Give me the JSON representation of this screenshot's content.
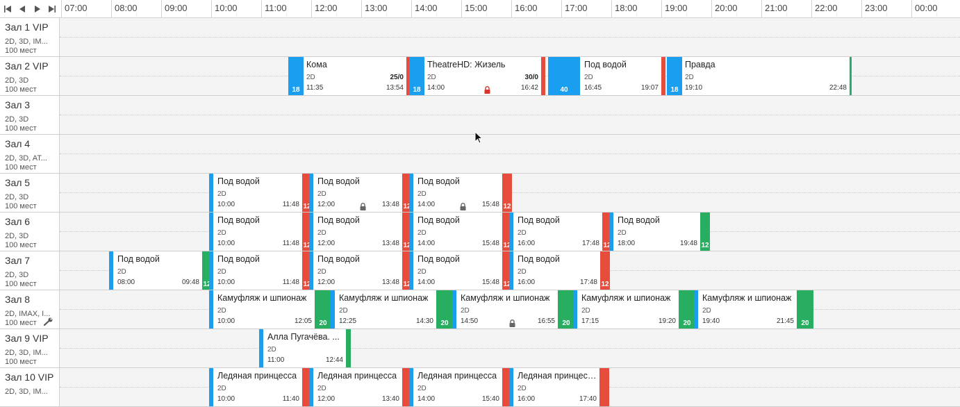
{
  "colors": {
    "blue": "#1a9ff0",
    "red": "#e84c3d",
    "green": "#27ae60",
    "lock_red": "#d9362b",
    "lock_gray": "#666666"
  },
  "nav": {
    "first": "first-page-icon",
    "prev": "prev-icon",
    "next": "next-icon",
    "last": "last-page-icon"
  },
  "timeline": {
    "hours": [
      "07:00",
      "08:00",
      "09:00",
      "10:00",
      "11:00",
      "12:00",
      "13:00",
      "14:00",
      "15:00",
      "16:00",
      "17:00",
      "18:00",
      "19:00",
      "20:00",
      "21:00",
      "22:00",
      "23:00",
      "00:00"
    ]
  },
  "halls": [
    {
      "name": "Зал 1 VIP",
      "formats": "2D, 3D, IM...",
      "seats": "100 мест",
      "sessions": []
    },
    {
      "name": "Зал 2 VIP",
      "formats": "2D, 3D",
      "seats": "100 мест",
      "sessions": [
        {
          "title": "Кома",
          "format": "2D",
          "start": "11:35",
          "end": "13:54",
          "occupancy": "25/0",
          "age": "18",
          "lead": "blue",
          "trail": "red"
        },
        {
          "title": "TheatreHD: Жизель",
          "format": "2D",
          "start": "14:00",
          "end": "16:42",
          "occupancy": "30/0",
          "age": "18",
          "lead": "blue",
          "trail": "red",
          "lock": "red"
        },
        {
          "title": "",
          "format": "",
          "start": "",
          "end": "",
          "age": "40",
          "lead": "blue",
          "trail": "",
          "block": true
        },
        {
          "title": "Под водой",
          "format": "2D",
          "start": "16:45",
          "end": "19:07",
          "age": "",
          "lead": "",
          "trail": "red"
        },
        {
          "title": "Правда",
          "format": "2D",
          "start": "19:10",
          "end": "22:48",
          "age": "18",
          "lead": "blue",
          "trail": "green"
        }
      ]
    },
    {
      "name": "Зал 3",
      "formats": "2D, 3D",
      "seats": "100 мест",
      "sessions": []
    },
    {
      "name": "Зал 4",
      "formats": "2D, 3D, AT...",
      "seats": "100 мест",
      "sessions": []
    },
    {
      "name": "Зал 5",
      "formats": "2D, 3D",
      "seats": "100 мест",
      "sessions": [
        {
          "title": "Под водой",
          "format": "2D",
          "start": "10:00",
          "end": "11:48",
          "age": "12",
          "lead": "blue",
          "trail": "red"
        },
        {
          "title": "Под водой",
          "format": "2D",
          "start": "12:00",
          "end": "13:48",
          "age": "12",
          "lead": "blue",
          "trail": "red",
          "lock": "gray"
        },
        {
          "title": "Под водой",
          "format": "2D",
          "start": "14:00",
          "end": "15:48",
          "age": "12",
          "lead": "blue",
          "trail": "red",
          "lock": "gray"
        }
      ]
    },
    {
      "name": "Зал 6",
      "formats": "2D, 3D",
      "seats": "100 мест",
      "sessions": [
        {
          "title": "Под водой",
          "format": "2D",
          "start": "10:00",
          "end": "11:48",
          "age": "12",
          "lead": "blue",
          "trail": "red"
        },
        {
          "title": "Под водой",
          "format": "2D",
          "start": "12:00",
          "end": "13:48",
          "age": "12",
          "lead": "blue",
          "trail": "red"
        },
        {
          "title": "Под водой",
          "format": "2D",
          "start": "14:00",
          "end": "15:48",
          "age": "12",
          "lead": "blue",
          "trail": "red"
        },
        {
          "title": "Под водой",
          "format": "2D",
          "start": "16:00",
          "end": "17:48",
          "age": "12",
          "lead": "blue",
          "trail": "red"
        },
        {
          "title": "Под водой",
          "format": "2D",
          "start": "18:00",
          "end": "19:48",
          "age": "12",
          "lead": "blue",
          "trail": "green"
        }
      ]
    },
    {
      "name": "Зал 7",
      "formats": "2D, 3D",
      "seats": "100 мест",
      "sessions": [
        {
          "title": "Под водой",
          "format": "2D",
          "start": "08:00",
          "end": "09:48",
          "age": "12",
          "lead": "blue",
          "trail": "green"
        },
        {
          "title": "Под водой",
          "format": "2D",
          "start": "10:00",
          "end": "11:48",
          "age": "12",
          "lead": "blue",
          "trail": "red"
        },
        {
          "title": "Под водой",
          "format": "2D",
          "start": "12:00",
          "end": "13:48",
          "age": "12",
          "lead": "blue",
          "trail": "red"
        },
        {
          "title": "Под водой",
          "format": "2D",
          "start": "14:00",
          "end": "15:48",
          "age": "12",
          "lead": "blue",
          "trail": "red"
        },
        {
          "title": "Под водой",
          "format": "2D",
          "start": "16:00",
          "end": "17:48",
          "age": "12",
          "lead": "blue",
          "trail": "red"
        }
      ]
    },
    {
      "name": "Зал 8",
      "formats": "2D, IMAX, I...",
      "seats": "100 мест",
      "wrench": true,
      "sessions": [
        {
          "title": "Камуфляж и шпионаж",
          "format": "2D",
          "start": "10:00",
          "end": "12:05",
          "age": "20",
          "lead": "blue",
          "trail": "green"
        },
        {
          "title": "Камуфляж и шпионаж",
          "format": "2D",
          "start": "12:25",
          "end": "14:30",
          "age": "20",
          "lead": "blue",
          "trail": "green"
        },
        {
          "title": "Камуфляж и шпионаж",
          "format": "2D",
          "start": "14:50",
          "end": "16:55",
          "age": "20",
          "lead": "blue",
          "trail": "green",
          "lock": "gray"
        },
        {
          "title": "Камуфляж и шпионаж",
          "format": "2D",
          "start": "17:15",
          "end": "19:20",
          "age": "20",
          "lead": "blue",
          "trail": "green"
        },
        {
          "title": "Камуфляж и шпионаж",
          "format": "2D",
          "start": "19:40",
          "end": "21:45",
          "age": "20",
          "lead": "blue",
          "trail": "green"
        }
      ]
    },
    {
      "name": "Зал 9 VIP",
      "formats": "2D, 3D, IM...",
      "seats": "100 мест",
      "sessions": [
        {
          "title": "Алла Пугачёва. ...",
          "format": "2D",
          "start": "11:00",
          "end": "12:44",
          "age": "",
          "lead": "blue",
          "trail": "green"
        }
      ]
    },
    {
      "name": "Зал 10 VIP",
      "formats": "2D, 3D, IM...",
      "seats": "",
      "sessions": [
        {
          "title": "Ледяная принцесса",
          "format": "2D",
          "start": "10:00",
          "end": "11:40",
          "age": "",
          "lead": "blue",
          "trail": "red"
        },
        {
          "title": "Ледяная принцесса",
          "format": "2D",
          "start": "12:00",
          "end": "13:40",
          "age": "",
          "lead": "blue",
          "trail": "red"
        },
        {
          "title": "Ледяная принцесса",
          "format": "2D",
          "start": "14:00",
          "end": "15:40",
          "age": "",
          "lead": "blue",
          "trail": "red"
        },
        {
          "title": "Ледяная принцесса",
          "format": "2D",
          "start": "16:00",
          "end": "17:40",
          "age": "",
          "lead": "blue",
          "trail": "red"
        }
      ]
    }
  ]
}
